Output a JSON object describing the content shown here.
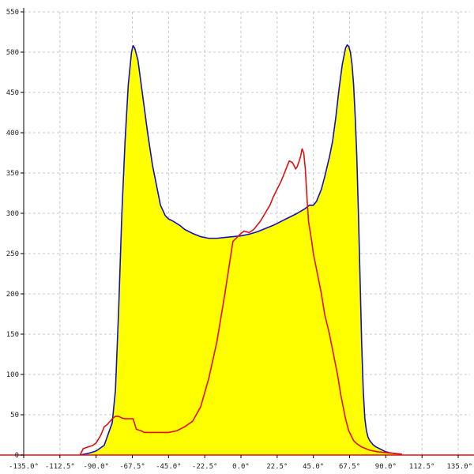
{
  "chart_data": {
    "type": "line",
    "title": "",
    "xlabel": "",
    "ylabel": "",
    "xlim": [
      -135,
      135
    ],
    "ylim": [
      0,
      550
    ],
    "grid": true,
    "x_ticks": [
      -135,
      -112.5,
      -90,
      -67.5,
      -45,
      -22.5,
      0,
      22.5,
      45,
      67.5,
      90,
      112.5,
      135
    ],
    "x_tick_labels": [
      "-135.0°",
      "-112.5°",
      "-90.0°",
      "-67.5°",
      "-45.0°",
      "-22.5°",
      "0.0°",
      "22.5°",
      "45.0°",
      "67.5°",
      "90.0°",
      "112.5°",
      "135.0°"
    ],
    "y_ticks": [
      0,
      50,
      100,
      150,
      200,
      250,
      300,
      350,
      400,
      450,
      500,
      550
    ],
    "y_tick_labels": [
      "0",
      "50",
      "100",
      "150",
      "200",
      "250",
      "300",
      "350",
      "400",
      "450",
      "500",
      "550"
    ],
    "series": [
      {
        "color": "#1010c8",
        "fill": "#ffff00",
        "x": [
          -100,
          -95,
          -90,
          -85,
          -80,
          -78,
          -76,
          -74,
          -72,
          -70,
          -68,
          -67,
          -66,
          -64,
          -62,
          -60,
          -58,
          -55,
          -52,
          -50,
          -47,
          -45,
          -42,
          -38,
          -35,
          -30,
          -25,
          -22.5,
          -20,
          -15,
          -10,
          -5,
          0,
          5,
          10,
          15,
          20,
          25,
          30,
          35,
          40,
          42.5,
          45,
          47,
          50,
          52,
          55,
          57,
          59,
          61,
          63,
          65,
          66,
          67,
          68,
          69,
          70,
          71,
          72,
          73,
          74,
          75,
          76,
          77,
          78,
          79,
          80,
          82,
          84,
          86,
          88,
          90,
          92,
          95,
          100
        ],
        "y": [
          0,
          2,
          5,
          12,
          40,
          80,
          180,
          300,
          390,
          460,
          500,
          508,
          505,
          490,
          460,
          430,
          400,
          360,
          330,
          310,
          297,
          293,
          290,
          285,
          280,
          275,
          271,
          270,
          269,
          269,
          270,
          271,
          272,
          274,
          277,
          281,
          285,
          290,
          295,
          300,
          306,
          310,
          310,
          315,
          330,
          345,
          370,
          390,
          420,
          455,
          485,
          505,
          509,
          507,
          500,
          485,
          460,
          420,
          370,
          300,
          220,
          140,
          80,
          45,
          30,
          22,
          18,
          13,
          10,
          8,
          6,
          4,
          3,
          2,
          1
        ]
      },
      {
        "color": "#e01010",
        "x": [
          -100,
          -98,
          -95,
          -92,
          -90,
          -87,
          -85,
          -83,
          -80,
          -78,
          -76,
          -74,
          -72,
          -70,
          -67,
          -65,
          -62,
          -60,
          -55,
          -50,
          -45,
          -40,
          -35,
          -30,
          -25,
          -20,
          -15,
          -10,
          -5,
          0,
          2,
          5,
          8,
          10,
          12,
          15,
          18,
          20,
          25,
          28,
          30,
          32,
          34,
          35,
          37,
          38,
          39,
          40,
          41,
          42,
          44,
          45,
          47,
          50,
          52,
          55,
          58,
          60,
          62,
          65,
          67,
          70,
          72,
          75,
          80,
          85,
          90,
          95,
          100
        ],
        "y": [
          0,
          8,
          10,
          12,
          15,
          25,
          35,
          38,
          45,
          48,
          48,
          46,
          45,
          45,
          45,
          32,
          30,
          28,
          28,
          28,
          28,
          30,
          35,
          42,
          60,
          95,
          140,
          200,
          265,
          275,
          278,
          276,
          280,
          285,
          290,
          300,
          310,
          320,
          340,
          355,
          365,
          363,
          355,
          358,
          370,
          380,
          375,
          355,
          320,
          290,
          265,
          250,
          230,
          200,
          175,
          150,
          120,
          100,
          75,
          45,
          30,
          18,
          14,
          10,
          6,
          4,
          3,
          2,
          1
        ]
      }
    ]
  }
}
